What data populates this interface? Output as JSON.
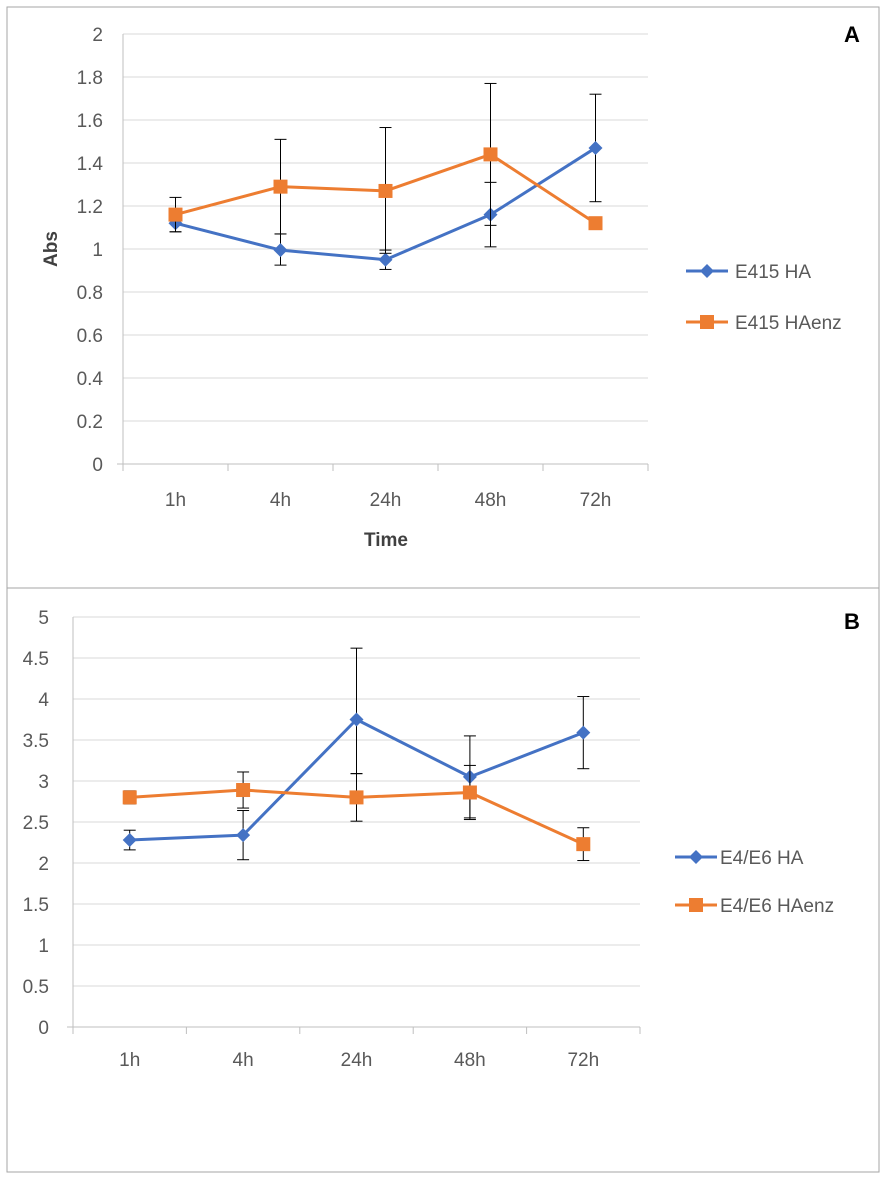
{
  "colors": {
    "ha": "#4472C4",
    "haenz": "#ED7D31",
    "grid": "#d9d9d9",
    "axis": "#bfbfbf",
    "text": "#595959",
    "border": "#a6a6a6"
  },
  "chart_data": [
    {
      "panel": "A",
      "type": "line",
      "ylabel": "Abs",
      "xlabel": "Time",
      "categories": [
        "1h",
        "4h",
        "24h",
        "48h",
        "72h"
      ],
      "ylim": [
        0,
        2
      ],
      "ytick_step": 0.2,
      "yticks": [
        "0",
        "0.2",
        "0.4",
        "0.6",
        "0.8",
        "1",
        "1.2",
        "1.4",
        "1.6",
        "1.8",
        "2"
      ],
      "legend_position": "right",
      "series": [
        {
          "name": "E415 HA",
          "marker": "diamond",
          "color": "#4472C4",
          "values": [
            1.12,
            0.995,
            0.95,
            1.16,
            1.47
          ],
          "error_plus": [
            0.04,
            0.075,
            0.045,
            0.15,
            0.25
          ],
          "error_minus": [
            0.04,
            0.07,
            0.045,
            0.15,
            0.25
          ]
        },
        {
          "name": "E415 HAenz",
          "marker": "square",
          "color": "#ED7D31",
          "values": [
            1.16,
            1.29,
            1.27,
            1.44,
            1.12
          ],
          "error_plus": [
            0.08,
            0.22,
            0.295,
            0.33,
            0.0
          ],
          "error_minus": [
            0.08,
            0.22,
            0.29,
            0.33,
            0.0
          ]
        }
      ]
    },
    {
      "panel": "B",
      "type": "line",
      "ylabel": "",
      "xlabel": "",
      "categories": [
        "1h",
        "4h",
        "24h",
        "48h",
        "72h"
      ],
      "ylim": [
        0,
        5
      ],
      "ytick_step": 0.5,
      "yticks": [
        "0",
        "0.5",
        "1",
        "1.5",
        "2",
        "2.5",
        "3",
        "3.5",
        "4",
        "4.5",
        "5"
      ],
      "legend_position": "right",
      "series": [
        {
          "name": "E4/E6 HA",
          "marker": "diamond",
          "color": "#4472C4",
          "values": [
            2.28,
            2.34,
            3.75,
            3.05,
            3.59
          ],
          "error_plus": [
            0.12,
            0.3,
            0.87,
            0.5,
            0.44
          ],
          "error_minus": [
            0.12,
            0.3,
            0.66,
            0.5,
            0.44
          ]
        },
        {
          "name": "E4/E6 HAenz",
          "marker": "square",
          "color": "#ED7D31",
          "values": [
            2.8,
            2.89,
            2.8,
            2.86,
            2.23
          ],
          "error_plus": [
            0.08,
            0.22,
            0.29,
            0.33,
            0.2
          ],
          "error_minus": [
            0.08,
            0.22,
            0.29,
            0.33,
            0.2
          ]
        }
      ]
    }
  ]
}
